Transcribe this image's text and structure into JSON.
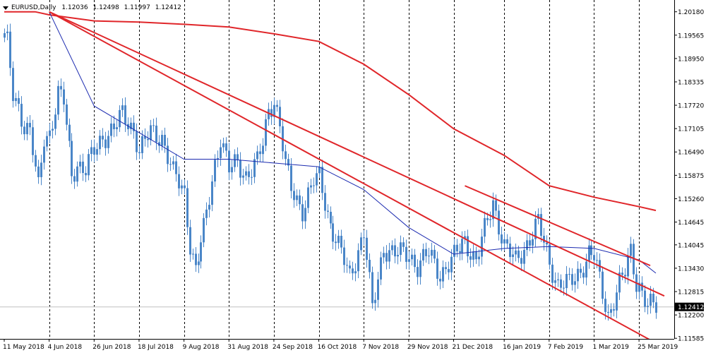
{
  "header": {
    "symbol": "EURUSD,Daily",
    "open": "1.12036",
    "high": "1.12498",
    "low": "1.11997",
    "close": "1.12412"
  },
  "colors": {
    "background": "#ffffff",
    "frame": "#000000",
    "candle": "#4a86c8",
    "ma_long": "#e0262a",
    "ma_short": "#1c2bb0",
    "trendlines": "#e0262a",
    "price_marker_bg": "#000000",
    "price_marker_text": "#ffffff",
    "price_line": "#c0c0c0"
  },
  "chart_data": {
    "type": "candlestick",
    "symbol": "EURUSD",
    "timeframe": "Daily",
    "ylim": [
      1.1157,
      1.2049
    ],
    "y_ticks": [
      "1.20180",
      "1.19565",
      "1.18950",
      "1.18335",
      "1.17720",
      "1.17105",
      "1.16490",
      "1.15875",
      "1.15260",
      "1.14645",
      "1.14045",
      "1.13430",
      "1.12815",
      "1.12200",
      "1.11585"
    ],
    "x_ticks": [
      "11 May 2018",
      "4 Jun 2018",
      "26 Jun 2018",
      "18 Jul 2018",
      "9 Aug 2018",
      "31 Aug 2018",
      "24 Sep 2018",
      "16 Oct 2018",
      "7 Nov 2018",
      "29 Nov 2018",
      "21 Dec 2018",
      "16 Jan 2019",
      "7 Feb 2019",
      "1 Mar 2019",
      "25 Mar 2019"
    ],
    "period_separators": [
      "4 Jun 2018",
      "26 Jun 2018",
      "18 Jul 2018",
      "9 Aug 2018",
      "31 Aug 2018",
      "24 Sep 2018",
      "16 Oct 2018",
      "7 Nov 2018",
      "29 Nov 2018",
      "21 Dec 2018",
      "16 Jan 2019",
      "7 Feb 2019",
      "1 Mar 2019",
      "25 Mar 2019"
    ],
    "current_price": "1.12412",
    "close_path": [
      [
        "11 May 2018",
        1.195
      ],
      [
        "14 May 2018",
        1.193
      ],
      [
        "16 May 2018",
        1.18
      ],
      [
        "18 May 2018",
        1.177
      ],
      [
        "22 May 2018",
        1.172
      ],
      [
        "24 May 2018",
        1.17
      ],
      [
        "29 May 2018",
        1.155
      ],
      [
        "31 May 2018",
        1.169
      ],
      [
        "4 Jun 2018",
        1.17
      ],
      [
        "7 Jun 2018",
        1.18
      ],
      [
        "11 Jun 2018",
        1.178
      ],
      [
        "14 Jun 2018",
        1.159
      ],
      [
        "18 Jun 2018",
        1.162
      ],
      [
        "21 Jun 2018",
        1.16
      ],
      [
        "26 Jun 2018",
        1.165
      ],
      [
        "29 Jun 2018",
        1.169
      ],
      [
        "5 Jul 2018",
        1.171
      ],
      [
        "10 Jul 2018",
        1.1745
      ],
      [
        "16 Jul 2018",
        1.171
      ],
      [
        "18 Jul 2018",
        1.165
      ],
      [
        "24 Jul 2018",
        1.17
      ],
      [
        "30 Jul 2018",
        1.169
      ],
      [
        "3 Aug 2018",
        1.159
      ],
      [
        "9 Aug 2018",
        1.154
      ],
      [
        "13 Aug 2018",
        1.141
      ],
      [
        "15 Aug 2018",
        1.134
      ],
      [
        "20 Aug 2018",
        1.144
      ],
      [
        "24 Aug 2018",
        1.162
      ],
      [
        "28 Aug 2018",
        1.169
      ],
      [
        "31 Aug 2018",
        1.16
      ],
      [
        "5 Sep 2018",
        1.162
      ],
      [
        "10 Sep 2018",
        1.159
      ],
      [
        "14 Sep 2018",
        1.162
      ],
      [
        "18 Sep 2018",
        1.167
      ],
      [
        "20 Sep 2018",
        1.176
      ],
      [
        "24 Sep 2018",
        1.179
      ],
      [
        "26 Sep 2018",
        1.172
      ],
      [
        "28 Sep 2018",
        1.161
      ],
      [
        "2 Oct 2018",
        1.155
      ],
      [
        "8 Oct 2018",
        1.15
      ],
      [
        "12 Oct 2018",
        1.157
      ],
      [
        "16 Oct 2018",
        1.158
      ],
      [
        "22 Oct 2018",
        1.146
      ],
      [
        "26 Oct 2018",
        1.138
      ],
      [
        "31 Oct 2018",
        1.132
      ],
      [
        "7 Nov 2018",
        1.144
      ],
      [
        "12 Nov 2018",
        1.123
      ],
      [
        "16 Nov 2018",
        1.14
      ],
      [
        "22 Nov 2018",
        1.138
      ],
      [
        "29 Nov 2018",
        1.138
      ],
      [
        "4 Dec 2018",
        1.135
      ],
      [
        "10 Dec 2018",
        1.138
      ],
      [
        "14 Dec 2018",
        1.133
      ],
      [
        "21 Dec 2018",
        1.137
      ],
      [
        "27 Dec 2018",
        1.142
      ],
      [
        "2 Jan 2019",
        1.136
      ],
      [
        "10 Jan 2019",
        1.152
      ],
      [
        "16 Jan 2019",
        1.14
      ],
      [
        "22 Jan 2019",
        1.136
      ],
      [
        "28 Jan 2019",
        1.141
      ],
      [
        "1 Feb 2019",
        1.146
      ],
      [
        "7 Feb 2019",
        1.136
      ],
      [
        "12 Feb 2019",
        1.13
      ],
      [
        "18 Feb 2019",
        1.13
      ],
      [
        "22 Feb 2019",
        1.134
      ],
      [
        "27 Feb 2019",
        1.138
      ],
      [
        "1 Mar 2019",
        1.137
      ],
      [
        "5 Mar 2019",
        1.131
      ],
      [
        "8 Mar 2019",
        1.122
      ],
      [
        "14 Mar 2019",
        1.13
      ],
      [
        "18 Mar 2019",
        1.133
      ],
      [
        "20 Mar 2019",
        1.139
      ],
      [
        "22 Mar 2019",
        1.131
      ],
      [
        "25 Mar 2019",
        1.13
      ],
      [
        "28 Mar 2019",
        1.124
      ],
      [
        "2 Apr 2019",
        1.1241
      ]
    ],
    "series": [
      {
        "name": "",
        "type": "moving-average",
        "points": [
          [
            "11 May 2018",
            1.2018
          ],
          [
            "28 May 2018",
            1.2018
          ],
          [
            "4 Jun 2018",
            1.201
          ],
          [
            "26 Jun 2018",
            1.1994
          ],
          [
            "18 Jul 2018",
            1.1991
          ],
          [
            "9 Aug 2018",
            1.1985
          ],
          [
            "31 Aug 2018",
            1.1978
          ],
          [
            "24 Sep 2018",
            1.196
          ],
          [
            "16 Oct 2018",
            1.194
          ],
          [
            "7 Nov 2018",
            1.188
          ],
          [
            "29 Nov 2018",
            1.18
          ],
          [
            "21 Dec 2018",
            1.171
          ],
          [
            "16 Jan 2019",
            1.164
          ],
          [
            "7 Feb 2019",
            1.156
          ],
          [
            "1 Mar 2019",
            1.153
          ],
          [
            "25 Mar 2019",
            1.1505
          ],
          [
            "2 Apr 2019",
            1.1495
          ]
        ]
      },
      {
        "name": "",
        "type": "moving-average",
        "points": [
          [
            "4 Jun 2018",
            1.2018
          ],
          [
            "26 Jun 2018",
            1.177
          ],
          [
            "18 Jul 2018",
            1.17
          ],
          [
            "9 Aug 2018",
            1.163
          ],
          [
            "31 Aug 2018",
            1.163
          ],
          [
            "24 Sep 2018",
            1.162
          ],
          [
            "16 Oct 2018",
            1.161
          ],
          [
            "7 Nov 2018",
            1.155
          ],
          [
            "29 Nov 2018",
            1.145
          ],
          [
            "21 Dec 2018",
            1.138
          ],
          [
            "16 Jan 2019",
            1.1395
          ],
          [
            "7 Feb 2019",
            1.14
          ],
          [
            "1 Mar 2019",
            1.1395
          ],
          [
            "25 Mar 2019",
            1.1365
          ],
          [
            "2 Apr 2019",
            1.133
          ]
        ]
      }
    ],
    "trendlines": [
      {
        "from": [
          "4 Jun 2018",
          1.2018
        ],
        "to": [
          "6 Apr 2019",
          1.127
        ]
      },
      {
        "from": [
          "4 Jun 2018",
          1.2018
        ],
        "to": [
          "1 Apr 2019",
          1.115
        ]
      },
      {
        "from": [
          "27 Dec 2018",
          1.156
        ],
        "to": [
          "31 Mar 2019",
          1.135
        ]
      }
    ]
  }
}
